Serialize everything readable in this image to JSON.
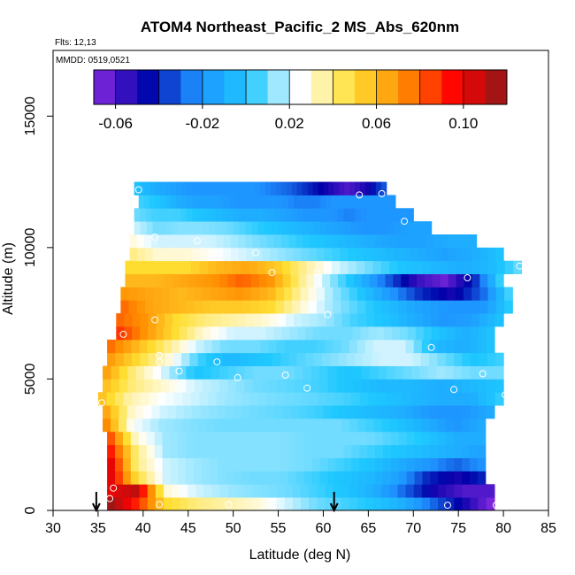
{
  "chart_data": {
    "type": "heatmap",
    "title": "ATOM4 Northeast_Pacific_2 MS_Abs_620nm",
    "flights_label": "Flts: 12,13",
    "dates_label": "MMDD: 0519,0521",
    "xlabel": "Latitude (deg N)",
    "ylabel": "Altitude (m)",
    "xlim": [
      30,
      85
    ],
    "ylim": [
      0,
      17500
    ],
    "x_ticks": [
      "30",
      "35",
      "40",
      "45",
      "50",
      "55",
      "60",
      "65",
      "70",
      "75",
      "80",
      "85"
    ],
    "y_ticks": [
      "0",
      "5000",
      "10000",
      "15000"
    ],
    "colorbar": {
      "range": [
        -0.07,
        0.12
      ],
      "tick_labels": [
        "-0.06",
        "-0.02",
        "0.02",
        "0.06",
        "0.10"
      ],
      "tick_values": [
        -0.06,
        -0.02,
        0.02,
        0.06,
        0.1
      ],
      "colors": [
        "#8a2be2",
        "#0000a8",
        "#1e90ff",
        "#1ec8ff",
        "#ffffff",
        "#ffe033",
        "#ff8c00",
        "#ff0000",
        "#8b1a1a"
      ]
    },
    "profile_markers": [
      34.8,
      61.2
    ],
    "layers": [
      {
        "alt": [
          0,
          500
        ],
        "lat": [
          36,
          79
        ],
        "v": [
          0.12,
          0.09,
          0.05,
          0.04,
          0.035,
          0.03,
          0.02,
          0.01,
          0.005,
          0.0,
          -0.01,
          -0.03,
          -0.05,
          -0.07
        ]
      },
      {
        "alt": [
          500,
          1000
        ],
        "lat": [
          36,
          79
        ],
        "v": [
          0.1,
          0.11,
          0.03,
          0.02,
          0.015,
          0.012,
          0.01,
          0.005,
          0.0,
          -0.01,
          -0.03,
          -0.05,
          -0.06,
          -0.06
        ]
      },
      {
        "alt": [
          1000,
          1500
        ],
        "lat": [
          36,
          78
        ],
        "v": [
          0.11,
          0.05,
          0.02,
          0.015,
          0.012,
          0.01,
          0.01,
          0.005,
          0.0,
          -0.005,
          -0.015,
          -0.04,
          -0.05,
          -0.04
        ]
      },
      {
        "alt": [
          1500,
          2000
        ],
        "lat": [
          36,
          78
        ],
        "v": [
          0.11,
          0.04,
          0.02,
          0.015,
          0.012,
          0.012,
          0.012,
          0.01,
          0.005,
          0.0,
          -0.01,
          -0.02,
          -0.03,
          -0.02
        ]
      },
      {
        "alt": [
          2000,
          2500
        ],
        "lat": [
          36,
          78
        ],
        "v": [
          0.1,
          0.04,
          0.015,
          0.012,
          0.012,
          0.012,
          0.012,
          0.01,
          0.01,
          0.005,
          0.0,
          -0.005,
          -0.01,
          -0.015
        ]
      },
      {
        "alt": [
          2500,
          3000
        ],
        "lat": [
          36,
          78
        ],
        "v": [
          0.09,
          0.03,
          0.015,
          0.012,
          0.012,
          0.012,
          0.012,
          0.01,
          0.01,
          0.01,
          0.005,
          0.0,
          -0.01,
          -0.01
        ]
      },
      {
        "alt": [
          3000,
          3500
        ],
        "lat": [
          35.5,
          78
        ],
        "v": [
          0.08,
          0.025,
          0.015,
          0.012,
          0.01,
          0.01,
          0.01,
          0.01,
          0.01,
          0.005,
          0.0,
          -0.01,
          -0.02,
          -0.01
        ]
      },
      {
        "alt": [
          3500,
          4000
        ],
        "lat": [
          35.5,
          79
        ],
        "v": [
          0.07,
          0.03,
          0.02,
          0.015,
          0.012,
          0.01,
          0.008,
          0.005,
          0.0,
          -0.005,
          -0.01,
          -0.02,
          -0.02,
          -0.01
        ]
      },
      {
        "alt": [
          4000,
          4500
        ],
        "lat": [
          35,
          80
        ],
        "v": [
          0.06,
          0.035,
          0.025,
          0.02,
          0.015,
          0.012,
          0.01,
          0.008,
          0.005,
          0.0,
          -0.005,
          -0.01,
          -0.01,
          0.005
        ]
      },
      {
        "alt": [
          4500,
          5000
        ],
        "lat": [
          35.5,
          80
        ],
        "v": [
          0.06,
          0.04,
          0.03,
          0.02,
          0.015,
          0.01,
          0.008,
          0.005,
          0.0,
          -0.005,
          -0.005,
          -0.01,
          -0.005,
          0.0
        ]
      },
      {
        "alt": [
          5000,
          5500
        ],
        "lat": [
          35.5,
          80
        ],
        "v": [
          0.07,
          0.04,
          0.02,
          0.0,
          0.005,
          0.01,
          0.01,
          0.005,
          0.0,
          0.005,
          0.01,
          0.015,
          0.01,
          0.01
        ]
      },
      {
        "alt": [
          5500,
          6000
        ],
        "lat": [
          36,
          80
        ],
        "v": [
          0.07,
          0.05,
          0.03,
          0.005,
          -0.005,
          0.0,
          0.005,
          0.01,
          0.015,
          0.02,
          0.02,
          0.01,
          0.0,
          0.005
        ]
      },
      {
        "alt": [
          6000,
          6500
        ],
        "lat": [
          36,
          79
        ],
        "v": [
          0.08,
          0.06,
          0.04,
          0.02,
          0.01,
          0.01,
          0.005,
          0.005,
          0.01,
          0.02,
          0.02,
          -0.005,
          -0.01,
          0.0
        ]
      },
      {
        "alt": [
          6500,
          7000
        ],
        "lat": [
          37,
          79
        ],
        "v": [
          0.09,
          0.07,
          0.05,
          0.03,
          0.02,
          0.02,
          0.015,
          0.01,
          0.01,
          0.015,
          0.01,
          0.0,
          -0.01,
          0.0
        ]
      },
      {
        "alt": [
          7000,
          7500
        ],
        "lat": [
          37,
          80
        ],
        "v": [
          0.08,
          0.07,
          0.05,
          0.04,
          0.035,
          0.03,
          0.02,
          0.015,
          0.005,
          0.0,
          -0.01,
          -0.02,
          -0.015,
          0.0
        ]
      },
      {
        "alt": [
          7500,
          8000
        ],
        "lat": [
          37.5,
          81
        ],
        "v": [
          0.08,
          0.065,
          0.06,
          0.055,
          0.055,
          0.05,
          0.03,
          0.015,
          0.005,
          -0.005,
          -0.015,
          -0.02,
          -0.02,
          0.005
        ]
      },
      {
        "alt": [
          8000,
          8500
        ],
        "lat": [
          37.5,
          81
        ],
        "v": [
          0.07,
          0.065,
          0.06,
          0.065,
          0.07,
          0.06,
          0.035,
          0.015,
          0.0,
          -0.02,
          -0.04,
          -0.05,
          -0.03,
          0.01
        ]
      },
      {
        "alt": [
          8500,
          9000
        ],
        "lat": [
          38,
          80
        ],
        "v": [
          0.06,
          0.06,
          0.065,
          0.07,
          0.08,
          0.07,
          0.04,
          0.015,
          -0.005,
          -0.03,
          -0.055,
          -0.065,
          -0.04,
          0.01
        ]
      },
      {
        "alt": [
          9000,
          9500
        ],
        "lat": [
          38,
          82
        ],
        "v": [
          0.05,
          0.05,
          0.05,
          0.06,
          0.065,
          0.055,
          0.035,
          0.02,
          0.01,
          0.0,
          -0.005,
          -0.01,
          -0.005,
          0.01
        ]
      },
      {
        "alt": [
          9500,
          10000
        ],
        "lat": [
          38.5,
          80
        ],
        "v": [
          0.04,
          0.03,
          0.03,
          0.025,
          0.02,
          0.015,
          0.01,
          0.005,
          0.0,
          -0.005,
          -0.01,
          -0.015,
          -0.01,
          0.0
        ]
      },
      {
        "alt": [
          10000,
          10500
        ],
        "lat": [
          38.5,
          77
        ],
        "v": [
          0.03,
          0.02,
          0.02,
          0.02,
          0.015,
          0.01,
          0.005,
          0.0,
          -0.005,
          -0.01,
          -0.015,
          -0.015,
          -0.01,
          -0.01
        ]
      },
      {
        "alt": [
          10500,
          11000
        ],
        "lat": [
          39,
          72
        ],
        "v": [
          0.02,
          0.01,
          0.012,
          0.012,
          0.01,
          0.005,
          0.0,
          -0.005,
          -0.01,
          -0.015,
          -0.02,
          -0.02,
          -0.015,
          -0.015
        ]
      },
      {
        "alt": [
          11000,
          11500
        ],
        "lat": [
          39,
          70
        ],
        "v": [
          0.01,
          0.005,
          0.005,
          0.0,
          -0.005,
          -0.01,
          -0.01,
          -0.015,
          -0.02,
          -0.02,
          -0.025,
          -0.02,
          -0.02,
          -0.02
        ]
      },
      {
        "alt": [
          11500,
          12000
        ],
        "lat": [
          39.5,
          68
        ],
        "v": [
          0.005,
          0.0,
          -0.01,
          -0.015,
          -0.015,
          -0.02,
          -0.02,
          -0.02,
          -0.025,
          -0.025,
          -0.02,
          -0.02,
          -0.02,
          -0.02
        ]
      },
      {
        "alt": [
          12000,
          12500
        ],
        "lat": [
          39,
          67
        ],
        "v": [
          0.0,
          -0.01,
          -0.015,
          -0.02,
          -0.02,
          -0.02,
          -0.02,
          -0.025,
          -0.03,
          -0.04,
          -0.05,
          -0.06,
          -0.05,
          -0.03
        ]
      }
    ],
    "points": [
      {
        "x": 39.5,
        "y": 12200
      },
      {
        "x": 64,
        "y": 12000
      },
      {
        "x": 66.5,
        "y": 12050
      },
      {
        "x": 69,
        "y": 11000
      },
      {
        "x": 41.3,
        "y": 10400
      },
      {
        "x": 46,
        "y": 10250
      },
      {
        "x": 52.5,
        "y": 9800
      },
      {
        "x": 54.3,
        "y": 9050
      },
      {
        "x": 59.3,
        "y": 9050
      },
      {
        "x": 81.8,
        "y": 9300
      },
      {
        "x": 76,
        "y": 8850
      },
      {
        "x": 60.5,
        "y": 7450
      },
      {
        "x": 41.3,
        "y": 7250
      },
      {
        "x": 37.8,
        "y": 6700
      },
      {
        "x": 72,
        "y": 6200
      },
      {
        "x": 41.8,
        "y": 5900
      },
      {
        "x": 41.8,
        "y": 5650
      },
      {
        "x": 48.2,
        "y": 5650
      },
      {
        "x": 44,
        "y": 5300
      },
      {
        "x": 55.8,
        "y": 5150
      },
      {
        "x": 50.5,
        "y": 5050
      },
      {
        "x": 77.7,
        "y": 5200
      },
      {
        "x": 58.2,
        "y": 4650
      },
      {
        "x": 74.5,
        "y": 4600
      },
      {
        "x": 80.2,
        "y": 4400
      },
      {
        "x": 35.4,
        "y": 4100
      },
      {
        "x": 36.7,
        "y": 850
      },
      {
        "x": 36.3,
        "y": 450
      },
      {
        "x": 41.8,
        "y": 230
      },
      {
        "x": 49.5,
        "y": 220
      },
      {
        "x": 73.8,
        "y": 200
      },
      {
        "x": 79.2,
        "y": 200
      }
    ]
  }
}
